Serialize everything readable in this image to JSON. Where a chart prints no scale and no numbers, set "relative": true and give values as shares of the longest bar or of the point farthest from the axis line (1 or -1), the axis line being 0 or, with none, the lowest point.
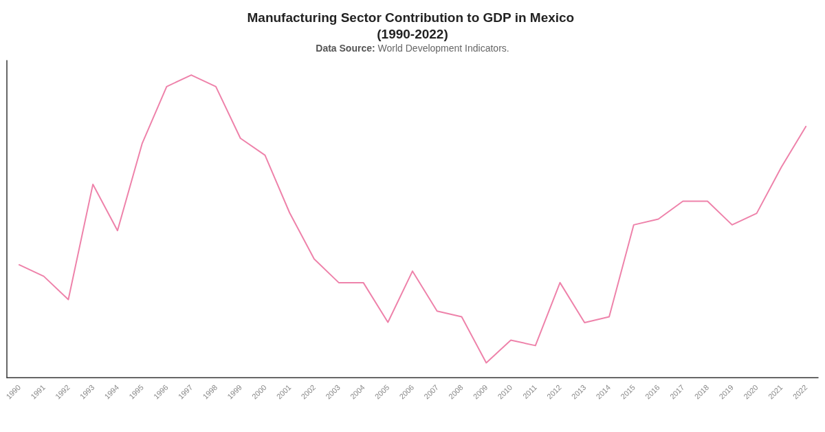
{
  "chart_data": {
    "type": "line",
    "title": "Manufacturing Sector Contribution to GDP in Mexico (1990-2022)",
    "subtitle": "Data Source: World Development Indicators.",
    "relative": true,
    "categories": [
      "1990",
      "1991",
      "1992",
      "1993",
      "1994",
      "1995",
      "1996",
      "1997",
      "1998",
      "1999",
      "2000",
      "2001",
      "2002",
      "2003",
      "2004",
      "2005",
      "2006",
      "2007",
      "2008",
      "2009",
      "2010",
      "2011",
      "2012",
      "2013",
      "2014",
      "2015",
      "2016",
      "2017",
      "2018",
      "2019",
      "2020",
      "2021",
      "2022"
    ],
    "series": [
      {
        "color": "#ee82aa",
        "values": [
          0.373,
          0.335,
          0.258,
          0.639,
          0.486,
          0.773,
          0.962,
          1.0,
          0.962,
          0.791,
          0.735,
          0.545,
          0.392,
          0.314,
          0.314,
          0.183,
          0.352,
          0.22,
          0.201,
          0.049,
          0.124,
          0.106,
          0.314,
          0.182,
          0.201,
          0.505,
          0.524,
          0.583,
          0.583,
          0.505,
          0.543,
          0.695,
          0.83
        ]
      }
    ],
    "grid": false,
    "marker": "none",
    "line_style": "solid"
  }
}
